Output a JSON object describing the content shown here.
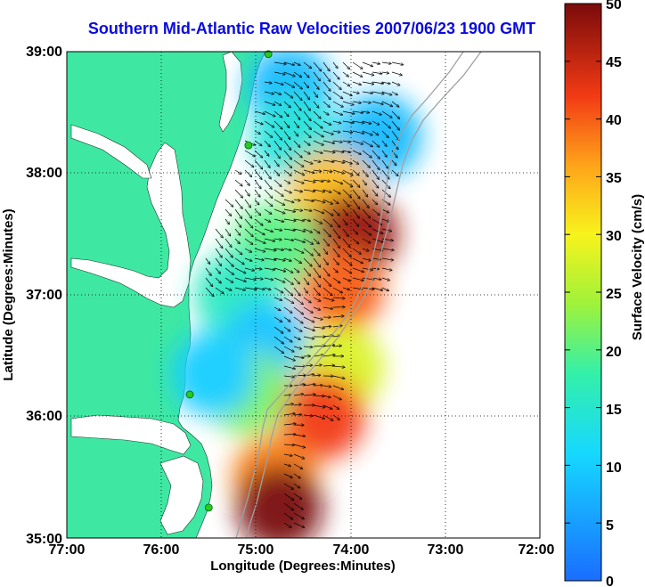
{
  "title": "Southern Mid-Atlantic Raw Velocities 2007/06/23 1900 GMT",
  "axes": {
    "xlabel": "Longitude (Degrees:Minutes)",
    "ylabel": "Latitude (Degrees:Minutes)",
    "x_ticks": [
      "77:00",
      "76:00",
      "75:00",
      "74:00",
      "73:00",
      "72:00"
    ],
    "y_ticks": [
      "35:00",
      "36:00",
      "37:00",
      "38:00",
      "39:00"
    ],
    "grid": "dotted"
  },
  "colorbar": {
    "label": "Surface Velocity (cm/s)",
    "ticks": [
      "0",
      "5",
      "10",
      "15",
      "20",
      "25",
      "30",
      "35",
      "40",
      "45",
      "50"
    ]
  },
  "colors": {
    "land": "#3fe8a2",
    "water": "#ffffff",
    "title": "#0a0ae0",
    "station": "#22cc22",
    "bathymetry": "#a0a0a0"
  },
  "chart_data": {
    "type": "heatmap",
    "title": "Southern Mid-Atlantic Raw Velocities 2007/06/23 1900 GMT",
    "xlabel": "Longitude (Degrees:Minutes)",
    "ylabel": "Latitude (Degrees:Minutes)",
    "xlim": [
      -77,
      -72
    ],
    "ylim": [
      35,
      39
    ],
    "colorbar_range": [
      0,
      50
    ],
    "units": "cm/s",
    "stations": [
      {
        "lon": -74.87,
        "lat": 38.98
      },
      {
        "lon": -75.08,
        "lat": 38.23
      },
      {
        "lon": -75.7,
        "lat": 36.18
      },
      {
        "lon": -75.5,
        "lat": 35.25
      }
    ],
    "velocity_regions": [
      {
        "lon": -74.65,
        "lat": 38.7,
        "speed": 8
      },
      {
        "lon": -73.7,
        "lat": 38.3,
        "speed": 8
      },
      {
        "lon": -74.6,
        "lat": 38.3,
        "speed": 14
      },
      {
        "lon": -74.2,
        "lat": 37.85,
        "speed": 34
      },
      {
        "lon": -73.95,
        "lat": 37.5,
        "speed": 48
      },
      {
        "lon": -74.1,
        "lat": 37.05,
        "speed": 40
      },
      {
        "lon": -74.8,
        "lat": 37.4,
        "speed": 20
      },
      {
        "lon": -75.2,
        "lat": 37.0,
        "speed": 16
      },
      {
        "lon": -74.9,
        "lat": 36.6,
        "speed": 9
      },
      {
        "lon": -74.1,
        "lat": 36.4,
        "speed": 28
      },
      {
        "lon": -74.3,
        "lat": 36.0,
        "speed": 42
      },
      {
        "lon": -75.1,
        "lat": 36.2,
        "speed": 22
      },
      {
        "lon": -75.45,
        "lat": 36.35,
        "speed": 10
      },
      {
        "lon": -74.8,
        "lat": 35.5,
        "speed": 38
      },
      {
        "lon": -74.75,
        "lat": 35.25,
        "speed": 50
      }
    ]
  }
}
